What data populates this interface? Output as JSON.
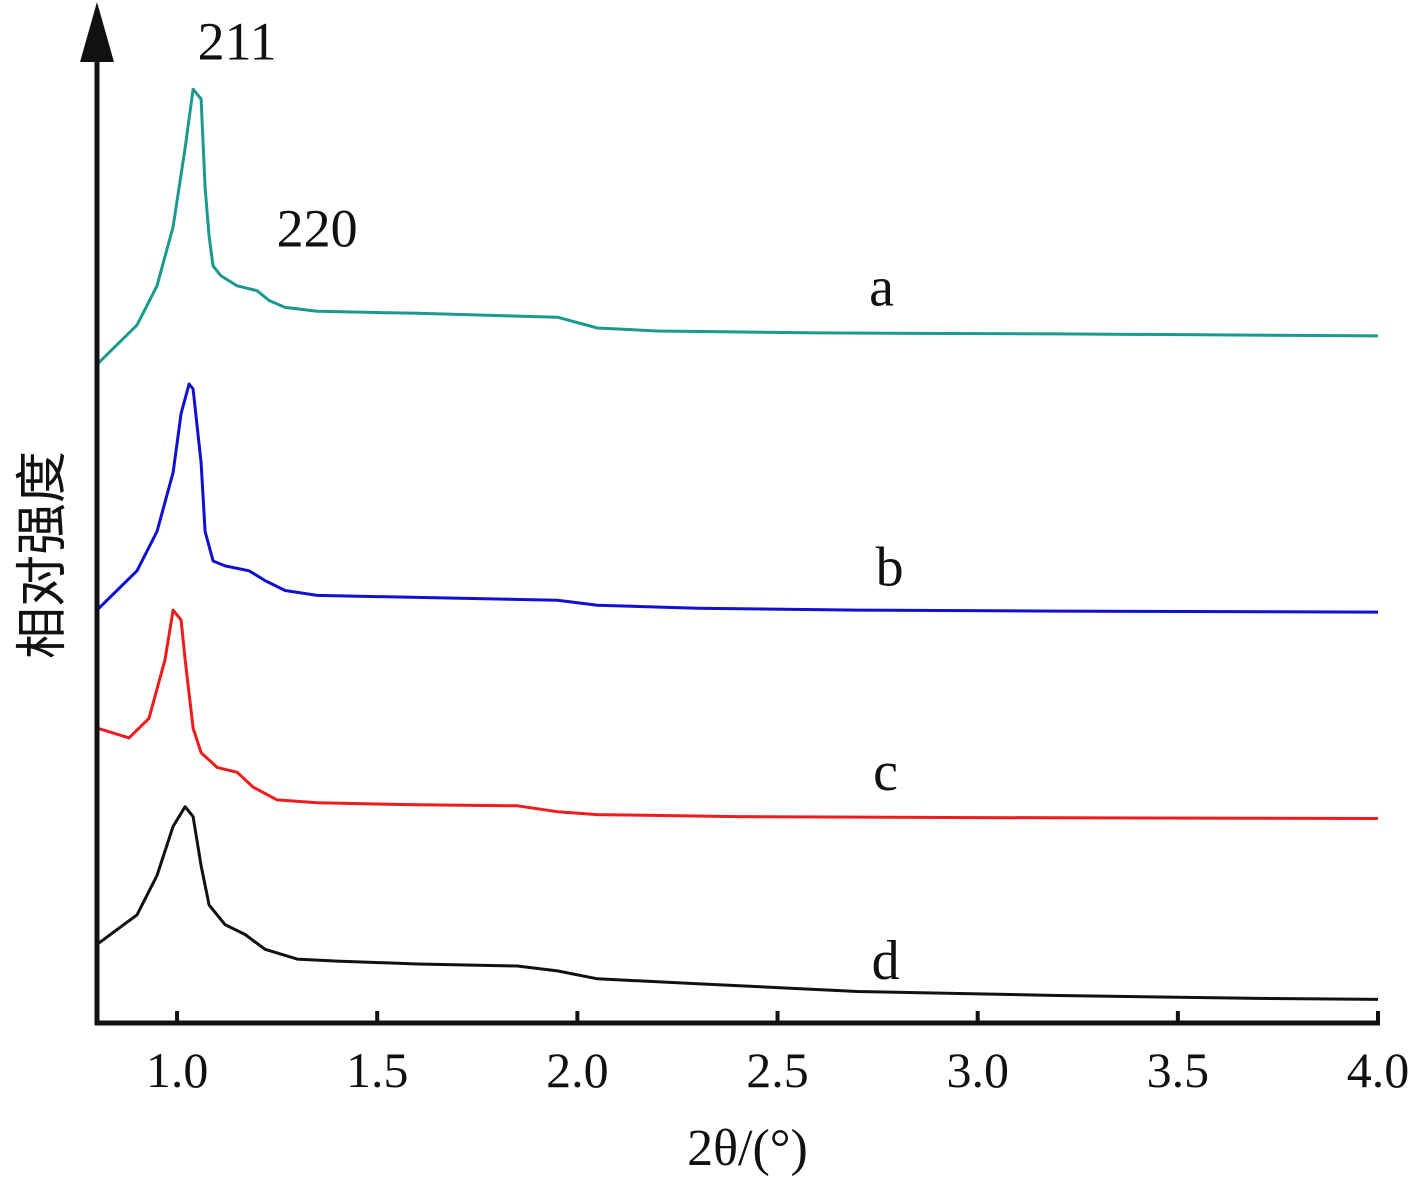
{
  "chart_data": {
    "type": "line",
    "xlabel": "2θ/(°)",
    "ylabel": "相对强度",
    "xlim": [
      0.8,
      4.0
    ],
    "xticks": [
      "1.0",
      "1.5",
      "2.0",
      "2.5",
      "3.0",
      "3.5",
      "4.0"
    ],
    "y_ticks_shown": false,
    "grid": false,
    "y_unit": "relative intensity (curves vertically offset, arbitrary units)",
    "series": [
      {
        "label": "a",
        "color": "#1a9a8e",
        "points": [
          [
            0.8,
            0.67
          ],
          [
            0.9,
            0.71
          ],
          [
            0.95,
            0.75
          ],
          [
            0.99,
            0.81
          ],
          [
            1.02,
            0.89
          ],
          [
            1.04,
            0.95
          ],
          [
            1.06,
            0.94
          ],
          [
            1.07,
            0.85
          ],
          [
            1.08,
            0.8
          ],
          [
            1.09,
            0.77
          ],
          [
            1.11,
            0.76
          ],
          [
            1.15,
            0.75
          ],
          [
            1.2,
            0.745
          ],
          [
            1.23,
            0.735
          ],
          [
            1.27,
            0.728
          ],
          [
            1.35,
            0.724
          ],
          [
            1.6,
            0.722
          ],
          [
            1.95,
            0.718
          ],
          [
            2.05,
            0.707
          ],
          [
            2.2,
            0.704
          ],
          [
            2.6,
            0.702
          ],
          [
            3.2,
            0.701
          ],
          [
            4.0,
            0.699
          ]
        ]
      },
      {
        "label": "b",
        "color": "#1010d0",
        "points": [
          [
            0.8,
            0.42
          ],
          [
            0.9,
            0.46
          ],
          [
            0.95,
            0.5
          ],
          [
            0.99,
            0.56
          ],
          [
            1.01,
            0.62
          ],
          [
            1.03,
            0.65
          ],
          [
            1.04,
            0.645
          ],
          [
            1.06,
            0.57
          ],
          [
            1.07,
            0.5
          ],
          [
            1.09,
            0.47
          ],
          [
            1.12,
            0.465
          ],
          [
            1.18,
            0.46
          ],
          [
            1.22,
            0.45
          ],
          [
            1.27,
            0.44
          ],
          [
            1.35,
            0.435
          ],
          [
            1.6,
            0.433
          ],
          [
            1.95,
            0.43
          ],
          [
            2.05,
            0.425
          ],
          [
            2.3,
            0.422
          ],
          [
            2.7,
            0.42
          ],
          [
            3.2,
            0.419
          ],
          [
            4.0,
            0.418
          ]
        ]
      },
      {
        "label": "c",
        "color": "#ee1c1c",
        "points": [
          [
            0.8,
            0.3
          ],
          [
            0.88,
            0.29
          ],
          [
            0.93,
            0.31
          ],
          [
            0.97,
            0.37
          ],
          [
            0.99,
            0.42
          ],
          [
            1.01,
            0.41
          ],
          [
            1.02,
            0.37
          ],
          [
            1.04,
            0.3
          ],
          [
            1.06,
            0.275
          ],
          [
            1.1,
            0.26
          ],
          [
            1.15,
            0.255
          ],
          [
            1.19,
            0.24
          ],
          [
            1.25,
            0.227
          ],
          [
            1.35,
            0.224
          ],
          [
            1.6,
            0.222
          ],
          [
            1.85,
            0.221
          ],
          [
            1.95,
            0.215
          ],
          [
            2.05,
            0.212
          ],
          [
            2.4,
            0.21
          ],
          [
            3.0,
            0.209
          ],
          [
            4.0,
            0.208
          ]
        ]
      },
      {
        "label": "d",
        "color": "#111111",
        "points": [
          [
            0.8,
            0.08
          ],
          [
            0.9,
            0.11
          ],
          [
            0.95,
            0.15
          ],
          [
            0.99,
            0.2
          ],
          [
            1.02,
            0.22
          ],
          [
            1.04,
            0.21
          ],
          [
            1.06,
            0.16
          ],
          [
            1.08,
            0.12
          ],
          [
            1.12,
            0.1
          ],
          [
            1.17,
            0.09
          ],
          [
            1.22,
            0.075
          ],
          [
            1.3,
            0.065
          ],
          [
            1.4,
            0.063
          ],
          [
            1.6,
            0.06
          ],
          [
            1.85,
            0.058
          ],
          [
            1.95,
            0.053
          ],
          [
            2.05,
            0.045
          ],
          [
            2.3,
            0.04
          ],
          [
            2.7,
            0.032
          ],
          [
            3.2,
            0.028
          ],
          [
            3.7,
            0.025
          ],
          [
            4.0,
            0.024
          ]
        ]
      }
    ],
    "series_labels": [
      {
        "text": "a",
        "x": 2.76,
        "y": 0.73
      },
      {
        "text": "b",
        "x": 2.78,
        "y": 0.445
      },
      {
        "text": "c",
        "x": 2.77,
        "y": 0.237
      },
      {
        "text": "d",
        "x": 2.77,
        "y": 0.045
      }
    ],
    "annotations": [
      {
        "text": "211",
        "x": 1.15,
        "y": 0.98
      },
      {
        "text": "220",
        "x": 1.35,
        "y": 0.79
      }
    ]
  }
}
